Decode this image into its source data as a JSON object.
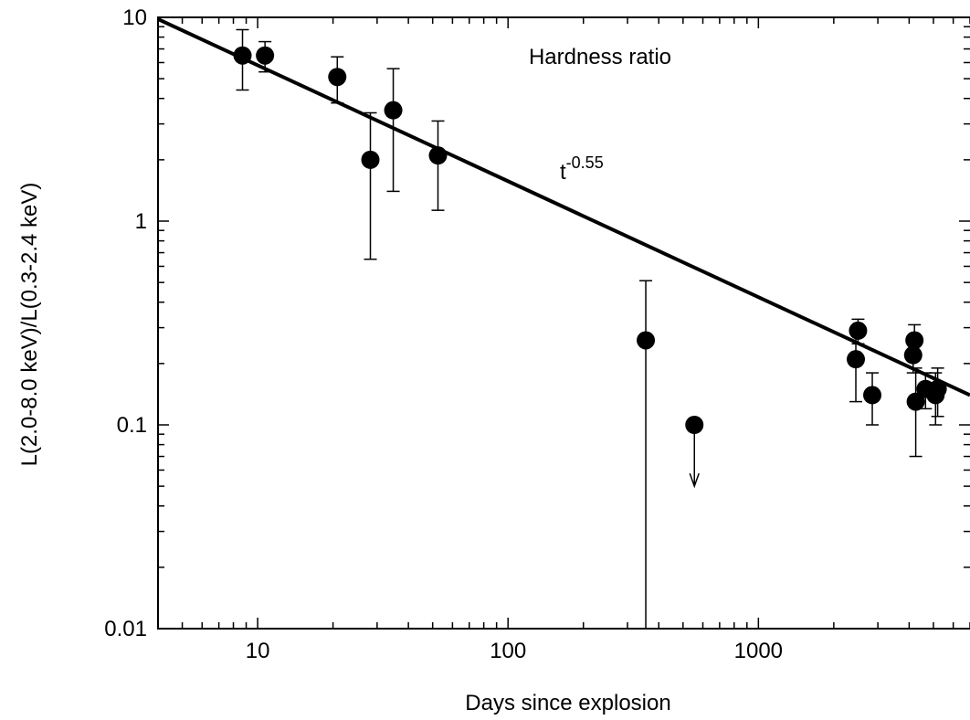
{
  "chart_data": {
    "type": "scatter",
    "title": "",
    "xlabel": "Days since explosion",
    "ylabel": "L(2.0-8.0 keV)/L(0.3-2.4 keV)",
    "xscale": "log",
    "yscale": "log",
    "xlim": [
      4,
      7000
    ],
    "ylim": [
      0.01,
      10
    ],
    "x_ticks": [
      10,
      100,
      1000
    ],
    "x_tick_labels": [
      "10",
      "100",
      "1000"
    ],
    "y_ticks": [
      0.01,
      0.1,
      1,
      10
    ],
    "y_tick_labels": [
      "0.01",
      "0.1",
      "1",
      "10"
    ],
    "grid": false,
    "annotations": [
      {
        "text": "Hardness ratio",
        "placement": "top-center"
      },
      {
        "text": "t",
        "superscript": "-0.55",
        "placement": "on fit line"
      }
    ],
    "series": [
      {
        "marker": "filled-circle",
        "points": [
          {
            "x": 8.7,
            "y": 6.5,
            "ylo": 4.4,
            "yhi": 8.7
          },
          {
            "x": 10.7,
            "y": 6.5,
            "ylo": 5.4,
            "yhi": 7.6
          },
          {
            "x": 20.8,
            "y": 5.1,
            "ylo": 3.8,
            "yhi": 6.4
          },
          {
            "x": 28.2,
            "y": 2.0,
            "ylo": 0.65,
            "yhi": 3.4
          },
          {
            "x": 34.8,
            "y": 3.5,
            "ylo": 1.4,
            "yhi": 5.6
          },
          {
            "x": 52.5,
            "y": 2.1,
            "ylo": 1.13,
            "yhi": 3.1
          },
          {
            "x": 355,
            "y": 0.26,
            "ylo": 0.01,
            "yhi": 0.51
          },
          {
            "x": 2500,
            "y": 0.29,
            "ylo": 0.25,
            "yhi": 0.33
          },
          {
            "x": 2450,
            "y": 0.21,
            "ylo": 0.13,
            "yhi": 0.29
          },
          {
            "x": 2850,
            "y": 0.14,
            "ylo": 0.1,
            "yhi": 0.18
          },
          {
            "x": 4200,
            "y": 0.26,
            "ylo": 0.21,
            "yhi": 0.31
          },
          {
            "x": 4150,
            "y": 0.22,
            "ylo": 0.18,
            "yhi": 0.26
          },
          {
            "x": 4250,
            "y": 0.13,
            "ylo": 0.07,
            "yhi": 0.19
          },
          {
            "x": 4650,
            "y": 0.15,
            "ylo": 0.12,
            "yhi": 0.18
          },
          {
            "x": 5200,
            "y": 0.15,
            "ylo": 0.11,
            "yhi": 0.19
          },
          {
            "x": 5100,
            "y": 0.14,
            "ylo": 0.1,
            "yhi": 0.18
          }
        ]
      }
    ],
    "upper_limits": [
      {
        "x": 555,
        "y": 0.1,
        "arrow_to": 0.05
      }
    ],
    "fit_line": {
      "label": "t^-0.55",
      "exponent": -0.55,
      "x_start": 4,
      "y_start": 9.8,
      "x_end": 7000,
      "y_end": 0.14
    }
  }
}
